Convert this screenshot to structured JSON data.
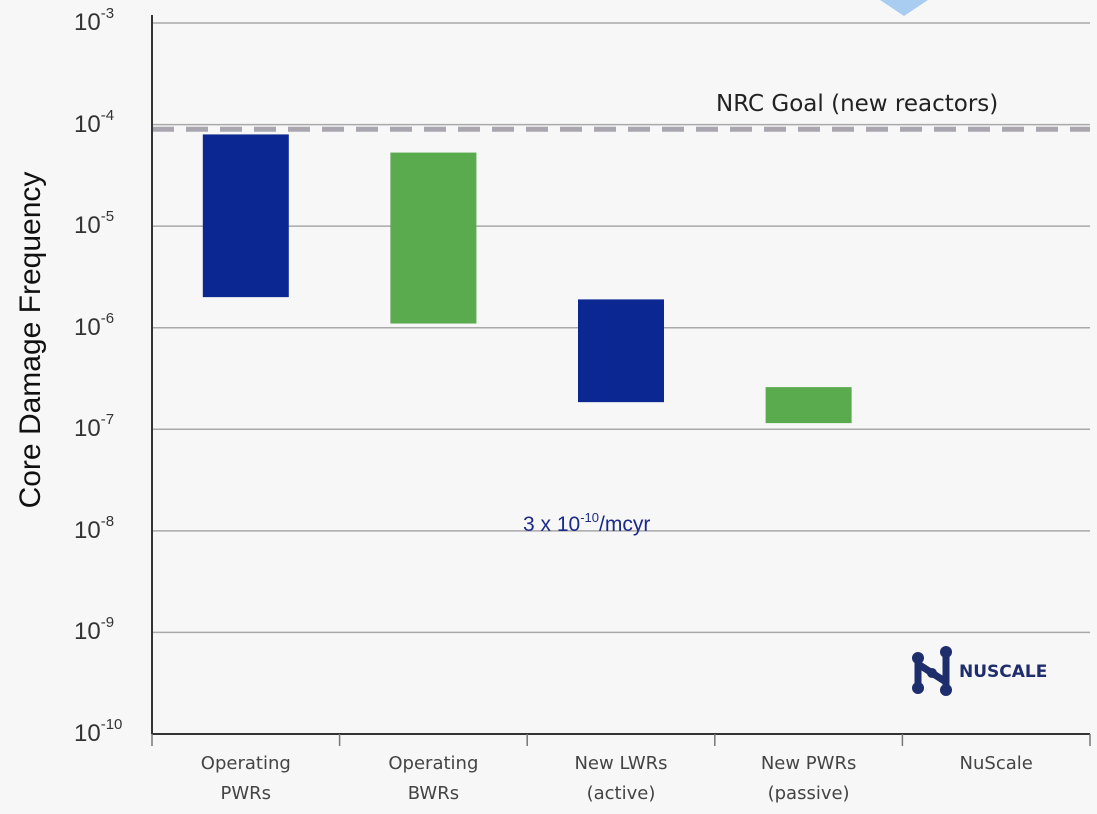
{
  "chart_data": {
    "type": "bar",
    "subtype": "floating-range",
    "ylabel": "Core Damage Frequency",
    "yscale": "log",
    "ylim": [
      1e-10,
      0.001
    ],
    "yticks": [
      {
        "base": "10",
        "exp": "-3"
      },
      {
        "base": "10",
        "exp": "-4"
      },
      {
        "base": "10",
        "exp": "-5"
      },
      {
        "base": "10",
        "exp": "-6"
      },
      {
        "base": "10",
        "exp": "-7"
      },
      {
        "base": "10",
        "exp": "-8"
      },
      {
        "base": "10",
        "exp": "-9"
      },
      {
        "base": "10",
        "exp": "-10"
      }
    ],
    "categories": [
      [
        "Operating",
        "PWRs"
      ],
      [
        "Operating",
        "BWRs"
      ],
      [
        "New LWRs",
        "(active)"
      ],
      [
        "New PWRs",
        "(passive)"
      ],
      [
        "NuScale"
      ]
    ],
    "bars": [
      {
        "low": 2e-06,
        "high": 8e-05,
        "color": "#0b2892"
      },
      {
        "low": 1.1e-06,
        "high": 5.3e-05,
        "color": "#5aaa4e"
      },
      {
        "low": 1.85e-07,
        "high": 1.9e-06,
        "color": "#0b2892"
      },
      {
        "low": 1.15e-07,
        "high": 2.6e-07,
        "color": "#5aaa4e"
      },
      null
    ],
    "reference_line": {
      "value": 9e-05,
      "label": "NRC Goal (new reactors)",
      "color": "#a9a6b0"
    },
    "annotation": {
      "prefix": "3 x 10",
      "exp": "-10",
      "suffix": "/mcyr",
      "color": "#1a2a8a"
    },
    "grid": true
  },
  "logo": {
    "text": "NUSCALE"
  }
}
